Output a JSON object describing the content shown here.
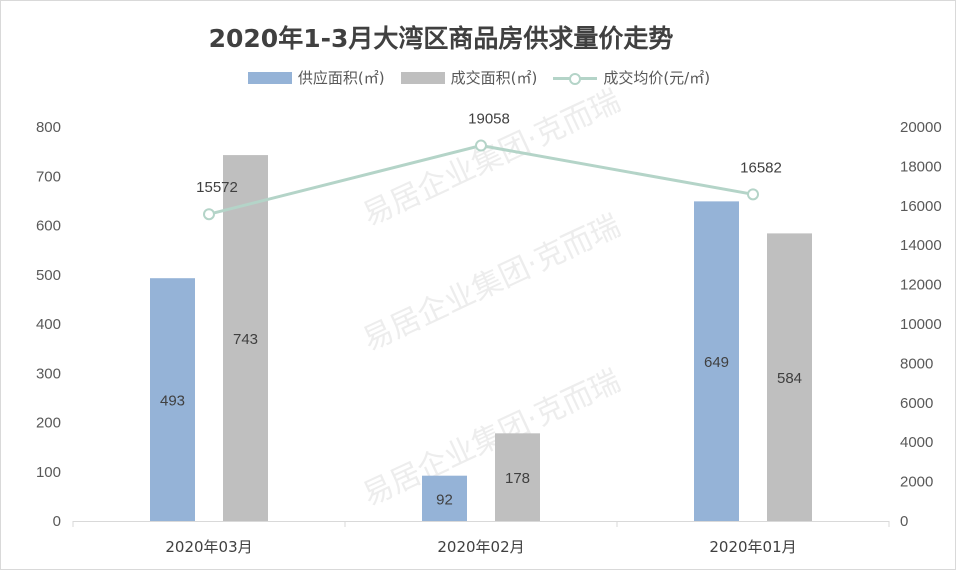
{
  "chart_data": {
    "type": "bar",
    "title": "2020年1-3月大湾区商品房供求量价走势",
    "categories": [
      "2020年03月",
      "2020年02月",
      "2020年01月"
    ],
    "series": [
      {
        "name": "供应面积(㎡)",
        "kind": "bar",
        "axis": "left",
        "color": "#95b3d7",
        "values": [
          493,
          92,
          649
        ]
      },
      {
        "name": "成交面积(㎡)",
        "kind": "bar",
        "axis": "left",
        "color": "#bfbfbf",
        "values": [
          743,
          178,
          584
        ]
      },
      {
        "name": "成交均价(元/㎡)",
        "kind": "line",
        "axis": "right",
        "color": "#b4d4c8",
        "values": [
          15572,
          19058,
          16582
        ]
      }
    ],
    "y_left": {
      "range": [
        0,
        800
      ],
      "ticks": [
        "0",
        "100",
        "200",
        "300",
        "400",
        "500",
        "600",
        "700",
        "800"
      ]
    },
    "y_right": {
      "range": [
        0,
        20000
      ],
      "ticks": [
        "0",
        "2000",
        "4000",
        "6000",
        "8000",
        "10000",
        "12000",
        "14000",
        "16000",
        "18000",
        "20000"
      ]
    },
    "grid": false,
    "legend_position": "top"
  },
  "watermark": "易居企业集团·克而瑞"
}
